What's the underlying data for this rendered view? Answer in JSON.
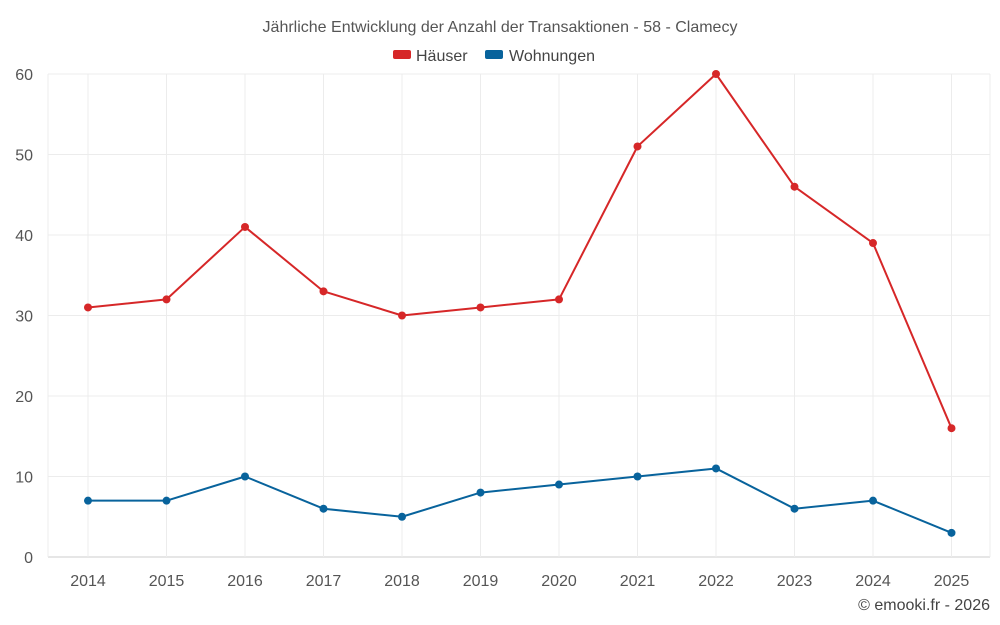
{
  "chart_data": {
    "type": "line",
    "title": "Jährliche Entwicklung der Anzahl der Transaktionen - 58 - Clamecy",
    "categories": [
      "2014",
      "2015",
      "2016",
      "2017",
      "2018",
      "2019",
      "2020",
      "2021",
      "2022",
      "2023",
      "2024",
      "2025"
    ],
    "series": [
      {
        "name": "Häuser",
        "color": "#d62728",
        "values": [
          31,
          32,
          41,
          33,
          30,
          31,
          32,
          51,
          60,
          46,
          39,
          16
        ]
      },
      {
        "name": "Wohnungen",
        "color": "#08639c",
        "values": [
          7,
          7,
          10,
          6,
          5,
          8,
          9,
          10,
          11,
          6,
          7,
          3
        ]
      }
    ],
    "ylim": [
      0,
      60
    ],
    "yticks": [
      0,
      10,
      20,
      30,
      40,
      50,
      60
    ],
    "grid": true,
    "legend": "top-center",
    "credit": "© emooki.fr - 2026"
  }
}
